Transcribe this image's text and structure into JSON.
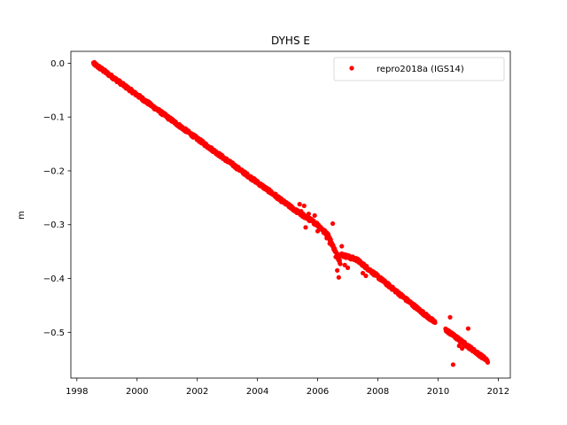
{
  "chart_data": {
    "type": "scatter",
    "title": "DYHS E",
    "xlabel": "",
    "ylabel": "m",
    "xlim": [
      1997.8,
      2012.4
    ],
    "ylim": [
      -0.585,
      0.022
    ],
    "xticks": [
      1998,
      2000,
      2002,
      2004,
      2006,
      2008,
      2010,
      2012
    ],
    "yticks": [
      0.0,
      -0.1,
      -0.2,
      -0.3,
      -0.4,
      -0.5
    ],
    "ytick_labels": [
      "0.0",
      "−0.1",
      "−0.2",
      "−0.3",
      "−0.4",
      "−0.5"
    ],
    "grid": false,
    "legend_position": "top-right",
    "series": [
      {
        "name": "repro2018a (IGS14)",
        "color": "#ff0000",
        "marker": "circle",
        "trend_segments": [
          {
            "x_start": 1998.55,
            "y_start": 0.0,
            "x_end": 2004.45,
            "y_end": -0.24
          },
          {
            "x_start": 2004.45,
            "y_start": -0.24,
            "x_end": 2004.75,
            "y_end": -0.253
          },
          {
            "x_start": 2004.75,
            "y_start": -0.253,
            "x_end": 2005.3,
            "y_end": -0.275
          },
          {
            "x_start": 2005.3,
            "y_start": -0.275,
            "x_end": 2006.0,
            "y_end": -0.3
          },
          {
            "x_start": 2006.0,
            "y_start": -0.3,
            "x_end": 2006.35,
            "y_end": -0.32
          },
          {
            "x_start": 2006.35,
            "y_start": -0.32,
            "x_end": 2006.75,
            "y_end": -0.37
          },
          {
            "x_start": 2006.75,
            "y_start": -0.355,
            "x_end": 2007.3,
            "y_end": -0.365
          },
          {
            "x_start": 2007.3,
            "y_start": -0.365,
            "x_end": 2009.9,
            "y_end": -0.482
          },
          {
            "x_start": 2010.25,
            "y_start": -0.495,
            "x_end": 2011.65,
            "y_end": -0.553
          }
        ],
        "outliers": [
          {
            "x": 2004.6,
            "y": -0.243
          },
          {
            "x": 2004.7,
            "y": -0.25
          },
          {
            "x": 2005.2,
            "y": -0.27
          },
          {
            "x": 2005.4,
            "y": -0.262
          },
          {
            "x": 2005.45,
            "y": -0.275
          },
          {
            "x": 2005.5,
            "y": -0.285
          },
          {
            "x": 2005.55,
            "y": -0.265
          },
          {
            "x": 2005.6,
            "y": -0.305
          },
          {
            "x": 2005.7,
            "y": -0.28
          },
          {
            "x": 2005.8,
            "y": -0.29
          },
          {
            "x": 2005.9,
            "y": -0.283
          },
          {
            "x": 2006.0,
            "y": -0.312
          },
          {
            "x": 2006.2,
            "y": -0.315
          },
          {
            "x": 2006.3,
            "y": -0.325
          },
          {
            "x": 2006.4,
            "y": -0.335
          },
          {
            "x": 2006.5,
            "y": -0.298
          },
          {
            "x": 2006.55,
            "y": -0.345
          },
          {
            "x": 2006.6,
            "y": -0.36
          },
          {
            "x": 2006.65,
            "y": -0.385
          },
          {
            "x": 2006.7,
            "y": -0.398
          },
          {
            "x": 2006.8,
            "y": -0.34
          },
          {
            "x": 2006.9,
            "y": -0.375
          },
          {
            "x": 2007.0,
            "y": -0.38
          },
          {
            "x": 2007.5,
            "y": -0.39
          },
          {
            "x": 2007.6,
            "y": -0.395
          },
          {
            "x": 2010.4,
            "y": -0.472
          },
          {
            "x": 2010.5,
            "y": -0.56
          },
          {
            "x": 2010.7,
            "y": -0.525
          },
          {
            "x": 2010.8,
            "y": -0.53
          },
          {
            "x": 2011.0,
            "y": -0.493
          },
          {
            "x": 2011.1,
            "y": -0.53
          }
        ]
      }
    ]
  }
}
